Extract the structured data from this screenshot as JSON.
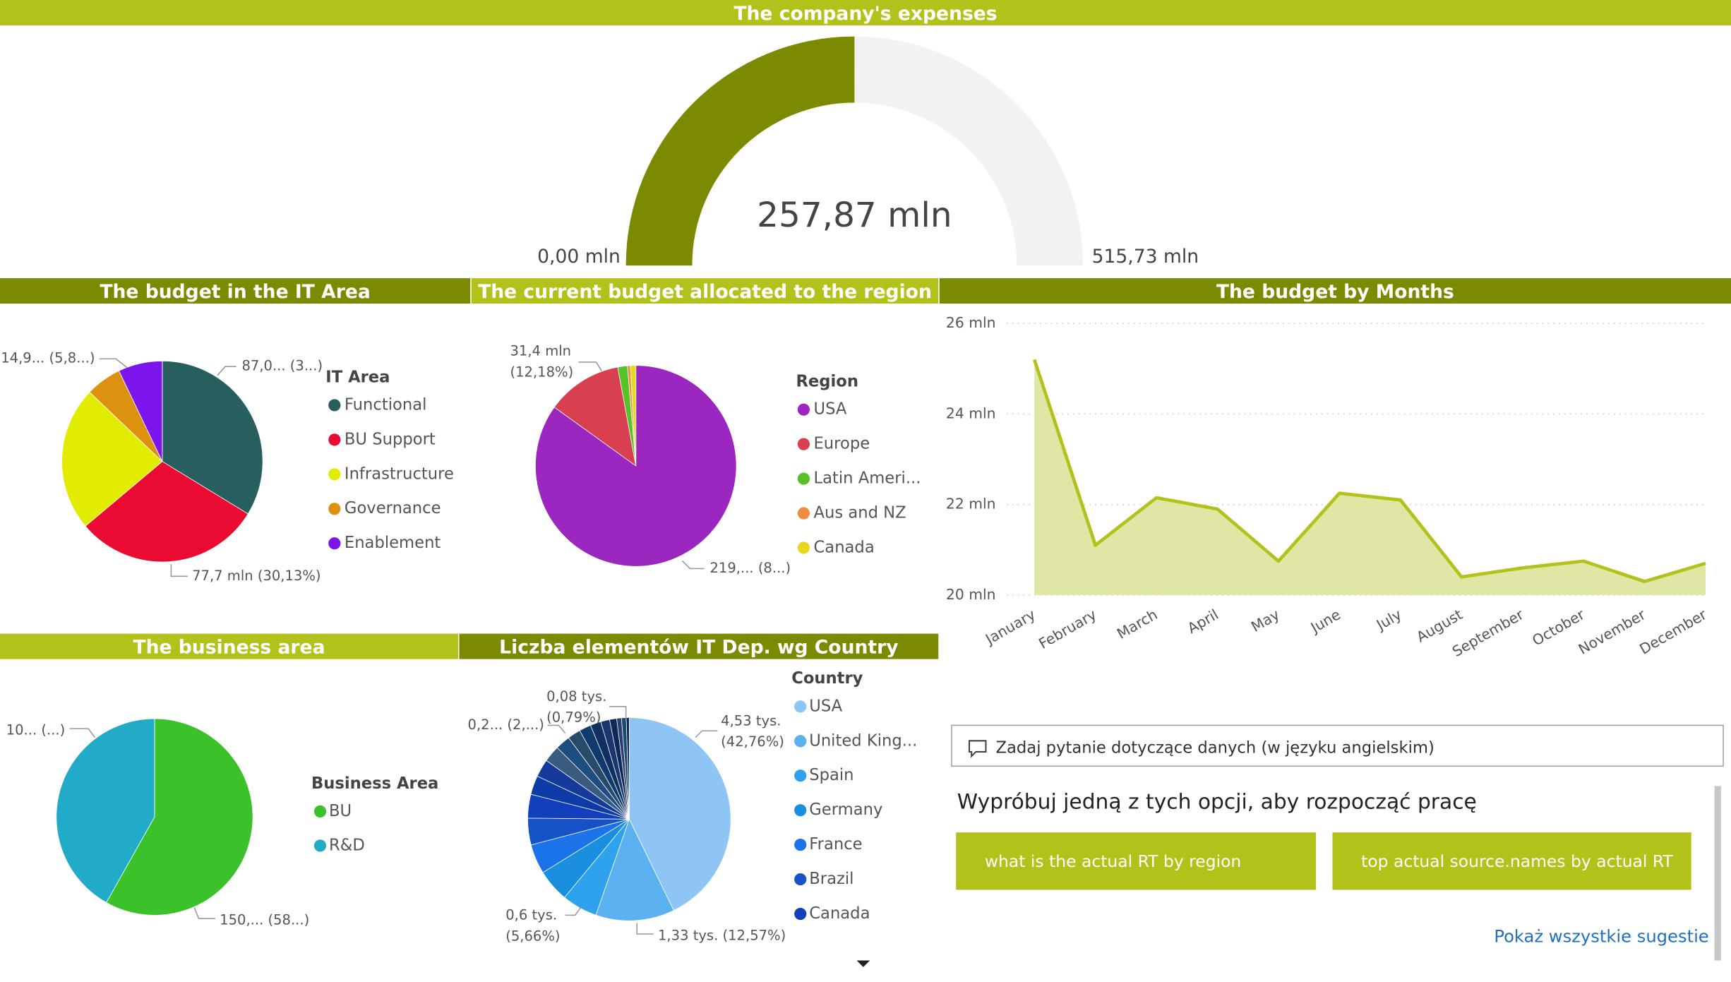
{
  "chart_data": [
    {
      "type": "gauge",
      "title": "The company's expenses",
      "values": [
        257.87
      ],
      "value_labels": [
        "257,87 mln"
      ],
      "ylim": [
        0,
        515.73
      ],
      "yticks": [
        {
          "value": 0,
          "label": "0,00 mln"
        },
        {
          "value": 515.73,
          "label": "515,73 mln"
        }
      ],
      "color": "#7b8a01",
      "track_color": "#f2f2f2",
      "title_color": "#b3c21b"
    },
    {
      "type": "pie",
      "title": "The budget in the IT Area",
      "legend_title": "IT Area",
      "categories": [
        "Functional",
        "BU Support",
        "Infrastructure",
        "Governance",
        "Enablement"
      ],
      "values": [
        87.0,
        77.7,
        59.97,
        14.9,
        18.3
      ],
      "value_labels": [
        "87,0... (3...)",
        "77,7 mln (30,13%)",
        null,
        "14,9... (5,8...)",
        null
      ],
      "colors": [
        "#275e5e",
        "#ea0b33",
        "#e2ec00",
        "#dd920f",
        "#7c14ec"
      ],
      "title_color": "#7b8a01"
    },
    {
      "type": "pie",
      "title": "The current budget allocated to the region",
      "legend_title": "Region",
      "categories": [
        "USA",
        "Europe",
        "Latin Ameri...",
        "Aus and NZ",
        "Canada"
      ],
      "values": [
        219.0,
        31.4,
        4.0,
        1.2,
        2.27
      ],
      "value_labels": [
        "219,... (8...)",
        "31,4 mln (12,18%)",
        null,
        null,
        null
      ],
      "colors": [
        "#9c27c0",
        "#d9404f",
        "#56c227",
        "#ef8c3e",
        "#e6d81b"
      ],
      "title_color": "#b3c21b"
    },
    {
      "type": "area",
      "title": "The budget by Months",
      "categories": [
        "January",
        "February",
        "March",
        "April",
        "May",
        "June",
        "July",
        "August",
        "September",
        "October",
        "November",
        "December"
      ],
      "values": [
        25.2,
        21.1,
        22.15,
        21.9,
        20.75,
        22.25,
        22.1,
        20.4,
        20.6,
        20.75,
        20.3,
        20.7
      ],
      "ylim": [
        20,
        26
      ],
      "yticks": [
        {
          "value": 20,
          "label": "20 mln"
        },
        {
          "value": 22,
          "label": "22 mln"
        },
        {
          "value": 24,
          "label": "24 mln"
        },
        {
          "value": 26,
          "label": "26 mln"
        }
      ],
      "grid": true,
      "color": "#b3c21b",
      "fill_color": "#e0e6a3",
      "title_color": "#7b8a01"
    },
    {
      "type": "pie",
      "title": "The business area",
      "legend_title": "Business Area",
      "categories": [
        "BU",
        "R&D"
      ],
      "values": [
        150.0,
        107.87
      ],
      "value_labels": [
        "150,... (58...)",
        "10... (...)"
      ],
      "colors": [
        "#3bc22b",
        "#22abc8"
      ],
      "title_color": "#b3c21b"
    },
    {
      "type": "pie",
      "title": "Liczba elementów IT Dep. wg Country",
      "legend_title": "Country",
      "categories": [
        "USA",
        "United King...",
        "Spain",
        "Germany",
        "France",
        "Brazil",
        "Canada",
        null,
        null,
        null,
        null,
        null,
        null,
        null,
        null,
        null,
        null,
        null,
        null
      ],
      "values": [
        4.53,
        1.33,
        0.6,
        0.55,
        0.5,
        0.45,
        0.4,
        0.32,
        0.3,
        0.28,
        0.25,
        0.22,
        0.2,
        0.18,
        0.15,
        0.12,
        0.08,
        0.08,
        0.05
      ],
      "value_labels": [
        "4,53 tys. (42,76%)",
        "1,33 tys. (12,57%)",
        "0,6 tys. (5,66%)",
        null,
        null,
        null,
        null,
        null,
        null,
        null,
        null,
        null,
        "0,2... (2,...)",
        null,
        null,
        null,
        "0,08 tys. (0,79%)",
        null,
        null
      ],
      "colors": [
        "#8ec5f5",
        "#5cb2f0",
        "#2ea2ec",
        "#1a8fe0",
        "#1a73e8",
        "#1753c7",
        "#1240bc",
        "#0d3ba8",
        "#163a9a",
        "#3a5a80",
        "#1d4e80",
        "#2a4a6a",
        "#0f3a6e",
        "#103060",
        "#1a3570",
        "#0b2a5a",
        "#2c3e70",
        "#1a4a78",
        "#0a2650"
      ],
      "title_color": "#7b8a01"
    }
  ],
  "qa": {
    "placeholder": "Zadaj pytanie dotyczące danych (w języku angielskim)",
    "heading": "Wypróbuj jedną z tych opcji, aby rozpocząć pracę",
    "suggestions": [
      "what is the actual RT by region",
      "top actual source.names by actual RT"
    ],
    "link": "Pokaż wszystkie sugestie"
  }
}
